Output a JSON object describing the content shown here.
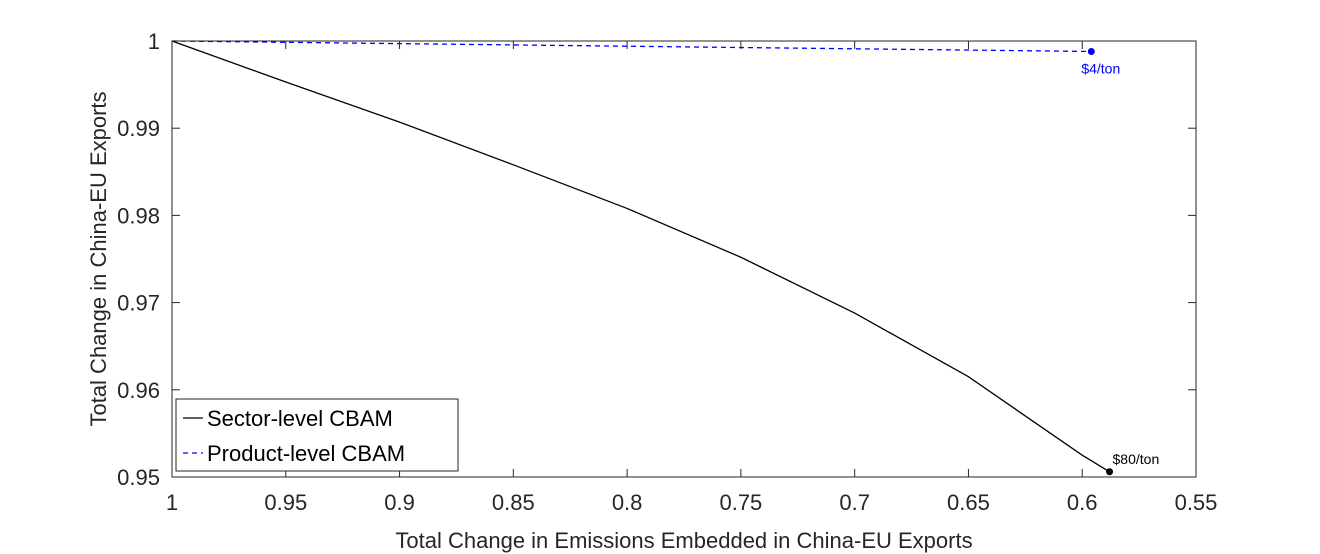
{
  "chart_data": {
    "type": "line",
    "title": "",
    "xlabel": "Total Change in Emissions Embedded in China-EU Exports",
    "ylabel": "Total Change in China-EU Exports",
    "xlim": [
      0.55,
      1
    ],
    "x_reversed": true,
    "ylim": [
      0.95,
      1
    ],
    "xticks": [
      1,
      0.95,
      0.9,
      0.85,
      0.8,
      0.75,
      0.7,
      0.65,
      0.6,
      0.55
    ],
    "xtick_labels": [
      "1",
      "0.95",
      "0.9",
      "0.85",
      "0.8",
      "0.75",
      "0.7",
      "0.65",
      "0.6",
      "0.55"
    ],
    "yticks": [
      0.95,
      0.96,
      0.97,
      0.98,
      0.99,
      1
    ],
    "ytick_labels": [
      "0.95",
      "0.96",
      "0.97",
      "0.98",
      "0.99",
      "1"
    ],
    "grid": false,
    "box": true,
    "legend_position": "bottom-left",
    "series": [
      {
        "name": "Sector-level CBAM",
        "color": "#000000",
        "line_style": "solid",
        "x": [
          1,
          0.95,
          0.9,
          0.85,
          0.8,
          0.75,
          0.7,
          0.65,
          0.6,
          0.588
        ],
        "y": [
          1,
          0.9953,
          0.9907,
          0.9858,
          0.9808,
          0.9752,
          0.9688,
          0.9615,
          0.9525,
          0.9506
        ],
        "endpoint": {
          "x": 0.588,
          "y": 0.9506,
          "label": "$80/ton"
        }
      },
      {
        "name": "Product-level CBAM",
        "color": "#0000ff",
        "line_style": "dashed",
        "x": [
          1,
          0.8,
          0.596
        ],
        "y": [
          1,
          0.9994,
          0.9988
        ],
        "endpoint": {
          "x": 0.596,
          "y": 0.9988,
          "label": "$4/ton"
        }
      }
    ]
  }
}
